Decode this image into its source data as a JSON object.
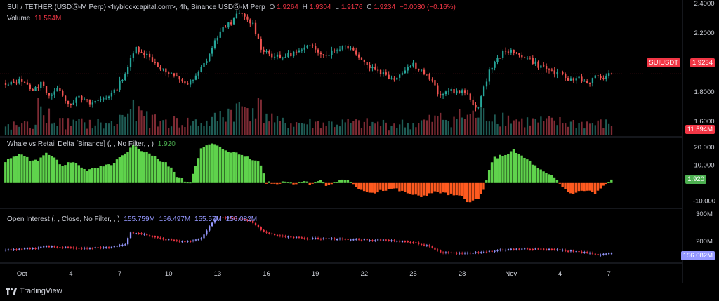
{
  "header": {
    "symbol_line": "SUI / TETHER (USDⓈ-M Perp) <hyblockcapital.com>, 4h, Binance USDⓈ-M Perp",
    "o_label": "O",
    "o_value": "1.9264",
    "h_label": "H",
    "h_value": "1.9304",
    "l_label": "L",
    "l_value": "1.9176",
    "c_label": "C",
    "c_value": "1.9234",
    "change": "−0.0030 (−0.16%)",
    "volume_label": "Volume",
    "volume_value": "11.594M"
  },
  "whale_panel": {
    "title": "Whale vs Retail Delta [Binance] (, , No Filter, , )",
    "value": "1.920"
  },
  "oi_panel": {
    "title": "Open Interest (, , Close, No Filter, , )",
    "values": [
      "155.759M",
      "156.497M",
      "155.57M",
      "156.082M"
    ]
  },
  "price_axis": {
    "ticks": [
      "2.4000",
      "2.2000",
      "2.0000",
      "1.8000",
      "1.6000"
    ],
    "symbol_tag": "SUIUSDT",
    "last_price": "1.9234",
    "volume_tag": "11.594M"
  },
  "whale_axis": {
    "ticks": [
      "20.000",
      "10.000",
      "-10.000"
    ],
    "tag": "1.920"
  },
  "oi_axis": {
    "ticks": [
      "300M",
      "200M"
    ],
    "tag": "156.082M"
  },
  "time_axis": {
    "ticks": [
      "Oct",
      "4",
      "7",
      "10",
      "13",
      "16",
      "19",
      "22",
      "25",
      "28",
      "Nov",
      "4",
      "7"
    ]
  },
  "branding": {
    "logo_text": "TradingView"
  },
  "colors": {
    "up": "#26a69a",
    "down": "#ef5350",
    "delta_pos": "#5fd34c",
    "delta_neg": "#ff5a1f",
    "oi_up": "#9598ff",
    "oi_down": "#f23645",
    "tag_red": "#f23645",
    "tag_green": "#4caf50",
    "tag_blue": "#9598ff"
  },
  "chart_data": [
    {
      "type": "candlestick",
      "title": "SUI / TETHER (USDⓈ-M Perp) <hyblockcapital.com>, 4h, Binance USDⓈ-M Perp",
      "timeframe": "4h",
      "ylim": [
        1.52,
        2.4
      ],
      "x_ticks": [
        "Oct",
        "4",
        "7",
        "10",
        "13",
        "16",
        "19",
        "22",
        "25",
        "28",
        "Nov",
        "4",
        "7"
      ],
      "price_path": [
        [
          0,
          1.84
        ],
        [
          4,
          1.87
        ],
        [
          7,
          1.88
        ],
        [
          10,
          1.8
        ],
        [
          13,
          1.86
        ],
        [
          16,
          1.78
        ],
        [
          20,
          1.82
        ],
        [
          23,
          1.72
        ],
        [
          27,
          1.76
        ],
        [
          31,
          1.72
        ],
        [
          35,
          1.75
        ],
        [
          40,
          1.8
        ],
        [
          44,
          1.93
        ],
        [
          48,
          2.1
        ],
        [
          52,
          2.05
        ],
        [
          56,
          1.98
        ],
        [
          60,
          1.92
        ],
        [
          64,
          1.89
        ],
        [
          67,
          1.85
        ],
        [
          70,
          1.9
        ],
        [
          74,
          2.02
        ],
        [
          78,
          2.18
        ],
        [
          81,
          2.25
        ],
        [
          84,
          2.29
        ],
        [
          86,
          2.34
        ],
        [
          88,
          2.3
        ],
        [
          91,
          2.26
        ],
        [
          94,
          2.1
        ],
        [
          98,
          2.05
        ],
        [
          101,
          2.03
        ],
        [
          105,
          2.06
        ],
        [
          109,
          2.08
        ],
        [
          113,
          2.12
        ],
        [
          117,
          2.05
        ],
        [
          121,
          2.08
        ],
        [
          125,
          2.12
        ],
        [
          129,
          2.07
        ],
        [
          133,
          1.98
        ],
        [
          137,
          1.95
        ],
        [
          141,
          1.9
        ],
        [
          144,
          1.9
        ],
        [
          147,
          1.96
        ],
        [
          150,
          1.99
        ],
        [
          154,
          1.93
        ],
        [
          157,
          1.87
        ],
        [
          160,
          1.76
        ],
        [
          163,
          1.82
        ],
        [
          166,
          1.8
        ],
        [
          169,
          1.8
        ],
        [
          172,
          1.72
        ],
        [
          174,
          1.7
        ],
        [
          176,
          1.82
        ],
        [
          178,
          1.95
        ],
        [
          181,
          2.02
        ],
        [
          184,
          2.09
        ],
        [
          187,
          2.06
        ],
        [
          190,
          2.05
        ],
        [
          193,
          2.02
        ],
        [
          196,
          1.98
        ],
        [
          199,
          1.96
        ],
        [
          202,
          1.93
        ],
        [
          205,
          1.91
        ],
        [
          208,
          1.88
        ],
        [
          211,
          1.9
        ],
        [
          214,
          1.86
        ],
        [
          217,
          1.9
        ],
        [
          220,
          1.9
        ],
        [
          223,
          1.92
        ]
      ],
      "last": {
        "open": 1.9264,
        "high": 1.9304,
        "low": 1.9176,
        "close": 1.9234,
        "change": -0.003,
        "change_pct": -0.16
      }
    },
    {
      "type": "bar",
      "title": "Volume",
      "last_value": "11.594M",
      "level_path": [
        [
          0,
          0.3
        ],
        [
          10,
          0.3
        ],
        [
          12,
          0.85
        ],
        [
          20,
          0.4
        ],
        [
          40,
          0.35
        ],
        [
          45,
          0.85
        ],
        [
          55,
          0.45
        ],
        [
          75,
          0.4
        ],
        [
          82,
          0.8
        ],
        [
          92,
          1.0
        ],
        [
          100,
          0.4
        ],
        [
          150,
          0.35
        ],
        [
          160,
          0.55
        ],
        [
          178,
          0.7
        ],
        [
          190,
          0.45
        ],
        [
          223,
          0.35
        ]
      ]
    },
    {
      "type": "bar",
      "title": "Whale vs Retail Delta [Binance] (, , No Filter, , )",
      "ylim": [
        -13,
        25
      ],
      "y_ticks": [
        20,
        10,
        -10
      ],
      "path": [
        [
          0,
          12
        ],
        [
          3,
          15
        ],
        [
          6,
          16
        ],
        [
          9,
          13
        ],
        [
          12,
          12
        ],
        [
          15,
          17
        ],
        [
          18,
          15
        ],
        [
          21,
          9
        ],
        [
          24,
          12
        ],
        [
          27,
          10
        ],
        [
          30,
          7
        ],
        [
          33,
          8
        ],
        [
          36,
          9
        ],
        [
          38,
          10
        ],
        [
          40,
          11
        ],
        [
          42,
          14
        ],
        [
          45,
          17
        ],
        [
          47,
          21
        ],
        [
          49,
          19
        ],
        [
          52,
          17
        ],
        [
          55,
          15
        ],
        [
          57,
          12
        ],
        [
          59,
          11
        ],
        [
          61,
          8
        ],
        [
          63,
          4
        ],
        [
          66,
          1
        ],
        [
          68,
          0.5
        ],
        [
          70,
          10
        ],
        [
          72,
          19
        ],
        [
          76,
          22
        ],
        [
          80,
          19
        ],
        [
          84,
          17
        ],
        [
          88,
          15
        ],
        [
          92,
          13
        ],
        [
          94,
          10
        ],
        [
          96,
          0.5
        ],
        [
          98,
          0.5
        ],
        [
          100,
          -0.8
        ],
        [
          102,
          1.5
        ],
        [
          104,
          0.5
        ],
        [
          106,
          -0.6
        ],
        [
          108,
          0.8
        ],
        [
          110,
          1
        ],
        [
          112,
          -0.5
        ],
        [
          114,
          0.4
        ],
        [
          116,
          1.5
        ],
        [
          118,
          -0.8
        ],
        [
          120,
          -0.4
        ],
        [
          122,
          0.6
        ],
        [
          124,
          2
        ],
        [
          127,
          1
        ],
        [
          129,
          -3
        ],
        [
          131,
          -4.5
        ],
        [
          134,
          -5
        ],
        [
          136,
          -5.5
        ],
        [
          138,
          -4
        ],
        [
          140,
          -3.8
        ],
        [
          142,
          -3
        ],
        [
          144,
          -3.5
        ],
        [
          146,
          -5
        ],
        [
          148,
          -5.5
        ],
        [
          150,
          -7
        ],
        [
          153,
          -7.5
        ],
        [
          156,
          -6
        ],
        [
          159,
          -5
        ],
        [
          162,
          -6
        ],
        [
          165,
          -7
        ],
        [
          168,
          -8
        ],
        [
          170,
          -10
        ],
        [
          172,
          -10
        ],
        [
          174,
          -9
        ],
        [
          176,
          -4
        ],
        [
          178,
          8
        ],
        [
          180,
          14
        ],
        [
          184,
          16
        ],
        [
          187,
          18
        ],
        [
          190,
          15
        ],
        [
          193,
          12
        ],
        [
          196,
          8
        ],
        [
          199,
          5
        ],
        [
          202,
          3
        ],
        [
          205,
          -2
        ],
        [
          208,
          -6
        ],
        [
          211,
          -5
        ],
        [
          214,
          -4
        ],
        [
          217,
          -6
        ],
        [
          219,
          -3
        ],
        [
          221,
          -1
        ],
        [
          223,
          1.92
        ]
      ],
      "last_value": "1.920"
    },
    {
      "type": "line",
      "title": "Open Interest (, , Close, No Filter, , )",
      "ylim": [
        125,
        310
      ],
      "y_ticks": [
        "300M",
        "200M"
      ],
      "path": [
        [
          0,
          168
        ],
        [
          8,
          173
        ],
        [
          15,
          180
        ],
        [
          22,
          178
        ],
        [
          30,
          175
        ],
        [
          38,
          178
        ],
        [
          44,
          188
        ],
        [
          46,
          232
        ],
        [
          50,
          228
        ],
        [
          56,
          212
        ],
        [
          62,
          202
        ],
        [
          68,
          198
        ],
        [
          72,
          212
        ],
        [
          76,
          268
        ],
        [
          78,
          290
        ],
        [
          82,
          288
        ],
        [
          86,
          282
        ],
        [
          90,
          277
        ],
        [
          94,
          240
        ],
        [
          100,
          220
        ],
        [
          110,
          212
        ],
        [
          120,
          209
        ],
        [
          140,
          204
        ],
        [
          150,
          196
        ],
        [
          156,
          182
        ],
        [
          160,
          158
        ],
        [
          170,
          157
        ],
        [
          176,
          161
        ],
        [
          182,
          168
        ],
        [
          190,
          174
        ],
        [
          196,
          172
        ],
        [
          202,
          170
        ],
        [
          208,
          164
        ],
        [
          214,
          158
        ],
        [
          218,
          150
        ],
        [
          223,
          156
        ]
      ],
      "header_values": [
        "155.759M",
        "156.497M",
        "155.57M",
        "156.082M"
      ],
      "last_value": "156.082M"
    }
  ]
}
